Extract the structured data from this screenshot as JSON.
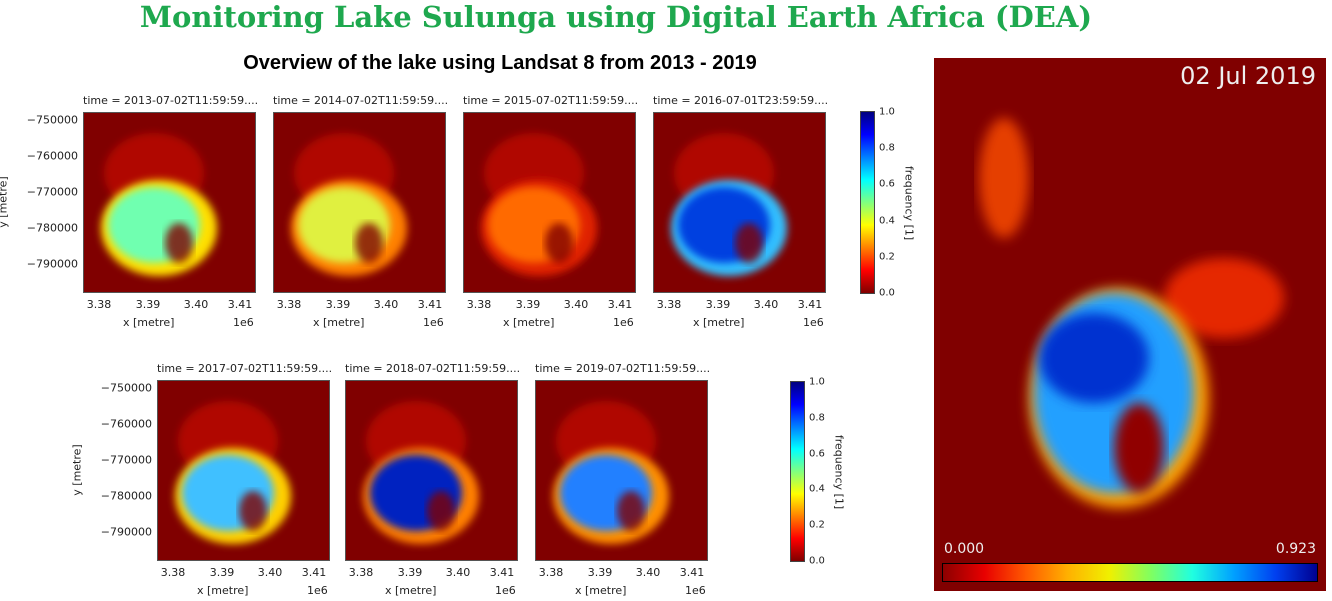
{
  "title": "Monitoring Lake Sulunga using Digital Earth Africa (DEA)",
  "subtitle": "Overview of the lake using Landsat 8 from 2013 - 2019",
  "chart_data": {
    "type": "heatmap",
    "xlabel": "x [metre]",
    "ylabel": "y [metre]",
    "x_scale_label": "1e6",
    "x_ticks": [
      "3.38",
      "3.39",
      "3.40",
      "3.41"
    ],
    "y_ticks": [
      "−750000",
      "−760000",
      "−770000",
      "−780000",
      "−790000"
    ],
    "colorbar": {
      "label": "frequency [1]",
      "ticks": [
        "0.0",
        "0.2",
        "0.4",
        "0.6",
        "0.8",
        "1.0"
      ],
      "range": [
        0,
        1
      ]
    },
    "panels": [
      {
        "title": "time = 2013-07-02T11:59:59....",
        "lake_color": "#70ffb0",
        "rim_color": "#ffe000"
      },
      {
        "title": "time = 2014-07-02T11:59:59....",
        "lake_color": "#e0f040",
        "rim_color": "#ff8000"
      },
      {
        "title": "time = 2015-07-02T11:59:59....",
        "lake_color": "#ff6a00",
        "rim_color": "#e02000"
      },
      {
        "title": "time = 2016-07-01T23:59:59....",
        "lake_color": "#0040e0",
        "rim_color": "#30c0ff"
      },
      {
        "title": "time = 2017-07-02T11:59:59....",
        "lake_color": "#40c0ff",
        "rim_color": "#ffd000"
      },
      {
        "title": "time = 2018-07-02T11:59:59....",
        "lake_color": "#0020c0",
        "rim_color": "#ff8000"
      },
      {
        "title": "time = 2019-07-02T11:59:59....",
        "lake_color": "#2080ff",
        "rim_color": "#ff9000"
      }
    ]
  },
  "animation": {
    "date": "02 Jul 2019",
    "min": "0.000",
    "max": "0.923"
  }
}
